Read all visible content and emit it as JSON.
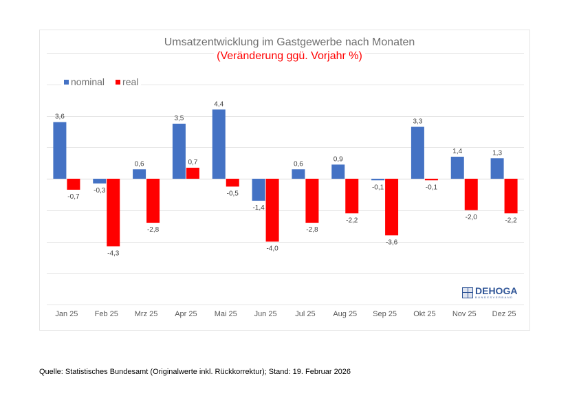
{
  "chart_data": {
    "type": "bar",
    "title": "Umsatzentwicklung im Gastgewerbe nach Monaten",
    "subtitle": "(Veränderung ggü. Vorjahr %)",
    "xlabel": "",
    "ylabel": "",
    "ylim": [
      -8,
      8
    ],
    "grid": true,
    "legend_position": "top-left",
    "categories": [
      "Jan 25",
      "Feb 25",
      "Mrz 25",
      "Apr 25",
      "Mai 25",
      "Jun 25",
      "Jul 25",
      "Aug 25",
      "Sep 25",
      "Okt 25",
      "Nov 25",
      "Dez 25"
    ],
    "series": [
      {
        "name": "nominal",
        "color": "#4472c4",
        "values": [
          3.6,
          -0.3,
          0.6,
          3.5,
          4.4,
          -1.4,
          0.6,
          0.9,
          -0.1,
          3.3,
          1.4,
          1.3
        ],
        "labels": [
          "3,6",
          "-0,3",
          "0,6",
          "3,5",
          "4,4",
          "-1,4",
          "0,6",
          "0,9",
          "-0,1",
          "3,3",
          "1,4",
          "1,3"
        ]
      },
      {
        "name": "real",
        "color": "#ff0000",
        "values": [
          -0.7,
          -4.3,
          -2.8,
          0.7,
          -0.5,
          -4.0,
          -2.8,
          -2.2,
          -3.6,
          -0.1,
          -2.0,
          -2.2
        ],
        "labels": [
          "-0,7",
          "-4,3",
          "-2,8",
          "0,7",
          "-0,5",
          "-4,0",
          "-2,8",
          "-2,2",
          "-3,6",
          "-0,1",
          "-2,0",
          "-2,2"
        ]
      }
    ]
  },
  "logo": {
    "brand": "DEHOGA",
    "sub": "BUNDESVERBAND"
  },
  "footer": "Quelle: Statistisches Bundesamt (Originalwerte inkl. Rückkorrektur); Stand: 19. Februar 2026"
}
